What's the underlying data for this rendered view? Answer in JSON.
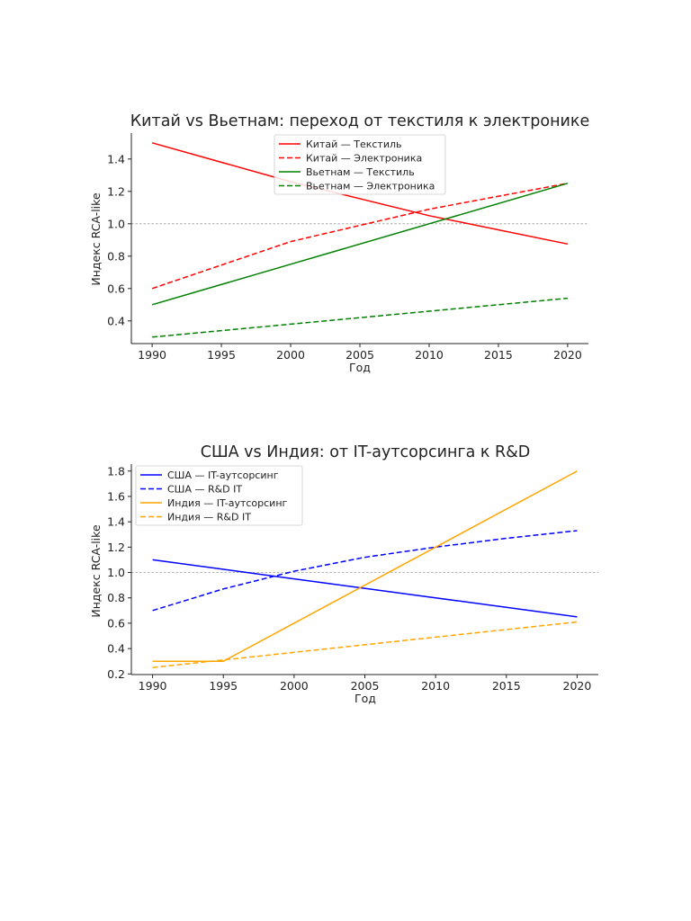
{
  "chart_data": [
    {
      "type": "line",
      "title": "Китай vs Вьетнам: переход от текстиля к электронике",
      "xlabel": "Год",
      "ylabel": "Индекс RCA-like",
      "xlim": [
        1988.5,
        2021.5
      ],
      "ylim": [
        0.26,
        1.56
      ],
      "xticks": [
        1990,
        1995,
        2000,
        2005,
        2010,
        2015,
        2020
      ],
      "yticks": [
        0.4,
        0.6,
        0.8,
        1.0,
        1.2,
        1.4
      ],
      "reference_line": 1.0,
      "legend_position": "top-center",
      "series": [
        {
          "name": "Китай — Текстиль",
          "color": "#ff0000",
          "style": "solid",
          "x": [
            1990,
            2000,
            2010,
            2020
          ],
          "values": [
            1.5,
            1.26,
            1.05,
            0.875
          ]
        },
        {
          "name": "Китай — Электроника",
          "color": "#ff0000",
          "style": "dashed",
          "x": [
            1990,
            2000,
            2010,
            2020
          ],
          "values": [
            0.6,
            0.89,
            1.09,
            1.25
          ]
        },
        {
          "name": "Вьетнам — Текстиль",
          "color": "#008000",
          "style": "solid",
          "x": [
            1990,
            2000,
            2010,
            2020
          ],
          "values": [
            0.5,
            0.75,
            1.0,
            1.25
          ]
        },
        {
          "name": "Вьетнам — Электроника",
          "color": "#008000",
          "style": "dashed",
          "x": [
            1990,
            2000,
            2010,
            2020
          ],
          "values": [
            0.3,
            0.38,
            0.46,
            0.54
          ]
        }
      ]
    },
    {
      "type": "line",
      "title": "США vs Индия: от IT-аутсорсинга к R&D",
      "xlabel": "Год",
      "ylabel": "Индекс RCA-like",
      "xlim": [
        1988.5,
        2021.5
      ],
      "ylim": [
        0.195,
        1.855
      ],
      "xticks": [
        1990,
        1995,
        2000,
        2005,
        2010,
        2015,
        2020
      ],
      "yticks": [
        0.2,
        0.4,
        0.6,
        0.8,
        1.0,
        1.2,
        1.4,
        1.6,
        1.8
      ],
      "reference_line": 1.0,
      "legend_position": "top-left",
      "series": [
        {
          "name": "США — IT-аутсорсинг",
          "color": "#0000ff",
          "style": "solid",
          "x": [
            1990,
            2000,
            2010,
            2020
          ],
          "values": [
            1.1,
            0.95,
            0.8,
            0.65
          ]
        },
        {
          "name": "США — R&D IT",
          "color": "#0000ff",
          "style": "dashed",
          "x": [
            1990,
            1995,
            2000,
            2005,
            2010,
            2015,
            2020
          ],
          "values": [
            0.7,
            0.87,
            1.01,
            1.12,
            1.2,
            1.27,
            1.33
          ]
        },
        {
          "name": "Индия — IT-аутсорсинг",
          "color": "#ffa500",
          "style": "solid",
          "x": [
            1990,
            1995,
            2020
          ],
          "values": [
            0.3,
            0.3,
            1.8
          ]
        },
        {
          "name": "Индия — R&D IT",
          "color": "#ffa500",
          "style": "dashed",
          "x": [
            1990,
            2000,
            2010,
            2020
          ],
          "values": [
            0.25,
            0.37,
            0.49,
            0.61
          ]
        }
      ]
    }
  ]
}
